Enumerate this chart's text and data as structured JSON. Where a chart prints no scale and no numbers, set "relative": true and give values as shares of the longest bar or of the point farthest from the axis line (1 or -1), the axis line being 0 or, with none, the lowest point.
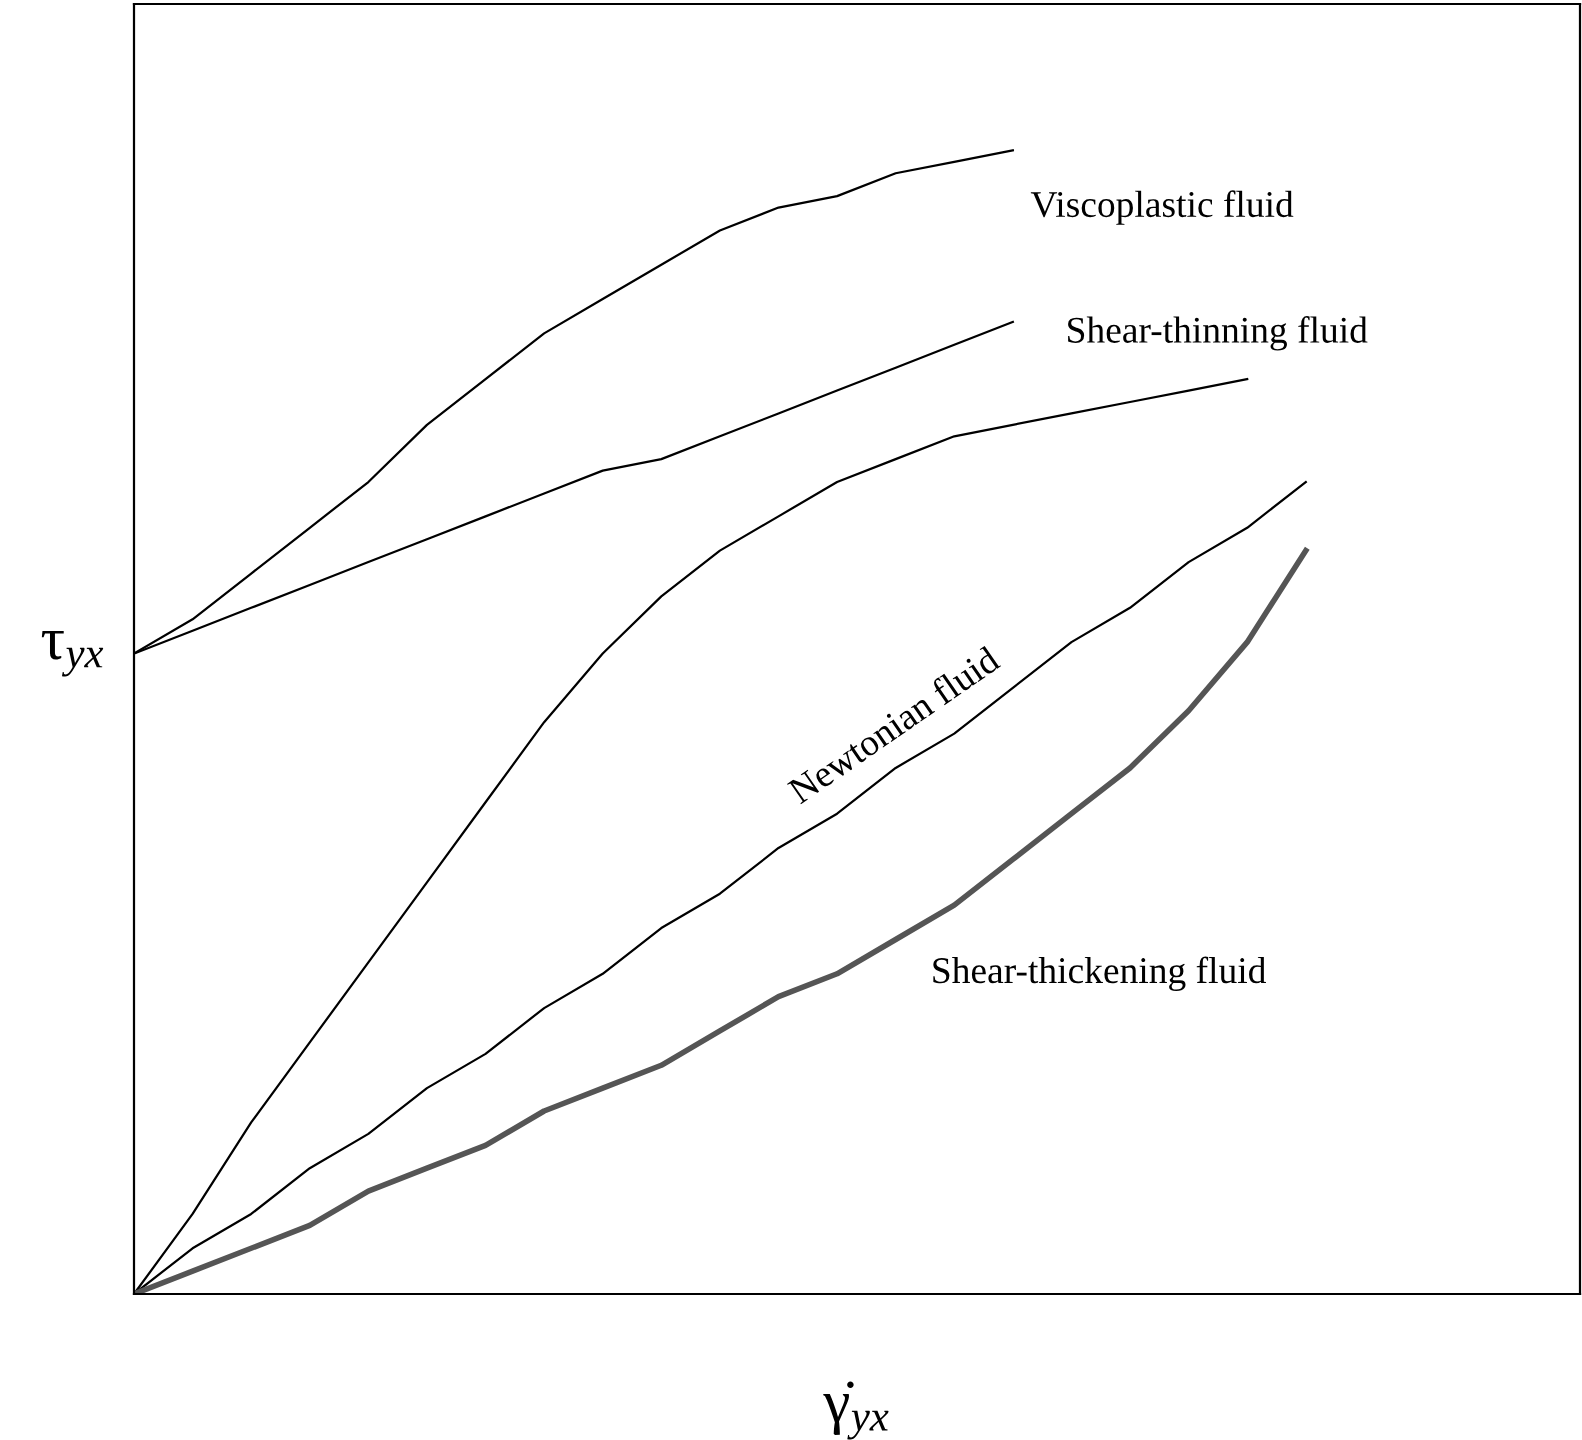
{
  "chart_data": {
    "type": "line",
    "relative": true,
    "xlabel": "γ̇$_{yx}$",
    "ylabel": "τ$_{yx}$",
    "categories": [
      null,
      null,
      null,
      null,
      null,
      null,
      null,
      null,
      null,
      null,
      null,
      null,
      null,
      null,
      null,
      null,
      null,
      null,
      null,
      null,
      null
    ],
    "series": [
      {
        "name": "Viscoplastic fluid",
        "color": "#000000",
        "values": [
          0.56,
          0.59,
          0.63,
          0.67,
          0.71,
          0.76,
          0.8,
          0.84,
          0.87,
          0.9,
          0.93,
          0.95,
          0.96,
          0.98,
          0.99,
          1.0,
          null,
          null,
          null,
          null,
          null
        ]
      },
      {
        "color": "#000000",
        "values": [
          0.56,
          0.58,
          0.6,
          0.62,
          0.64,
          0.66,
          0.68,
          0.7,
          0.72,
          0.73,
          0.75,
          0.77,
          0.79,
          0.81,
          0.83,
          0.85,
          null,
          null,
          null,
          null,
          null
        ]
      },
      {
        "name": "Shear-thinning fluid",
        "color": "#000000",
        "values": [
          0,
          0.07,
          0.15,
          0.22,
          0.29,
          0.36,
          0.43,
          0.5,
          0.56,
          0.61,
          0.65,
          0.68,
          0.71,
          0.73,
          0.75,
          0.76,
          0.77,
          0.78,
          0.79,
          0.8,
          null
        ]
      },
      {
        "name": "Newtonian fluid",
        "color": "#000000",
        "values": [
          0,
          0.04,
          0.07,
          0.11,
          0.14,
          0.18,
          0.21,
          0.25,
          0.28,
          0.32,
          0.35,
          0.39,
          0.42,
          0.46,
          0.49,
          0.53,
          0.57,
          0.6,
          0.64,
          0.67,
          0.71
        ]
      },
      {
        "name": "Shear-thickening fluid",
        "color": "#555555",
        "values": [
          0,
          0.02,
          0.04,
          0.06,
          0.09,
          0.11,
          0.13,
          0.16,
          0.18,
          0.2,
          0.23,
          0.26,
          0.28,
          0.31,
          0.34,
          0.38,
          0.42,
          0.46,
          0.51,
          0.57,
          0.65
        ]
      }
    ]
  }
}
